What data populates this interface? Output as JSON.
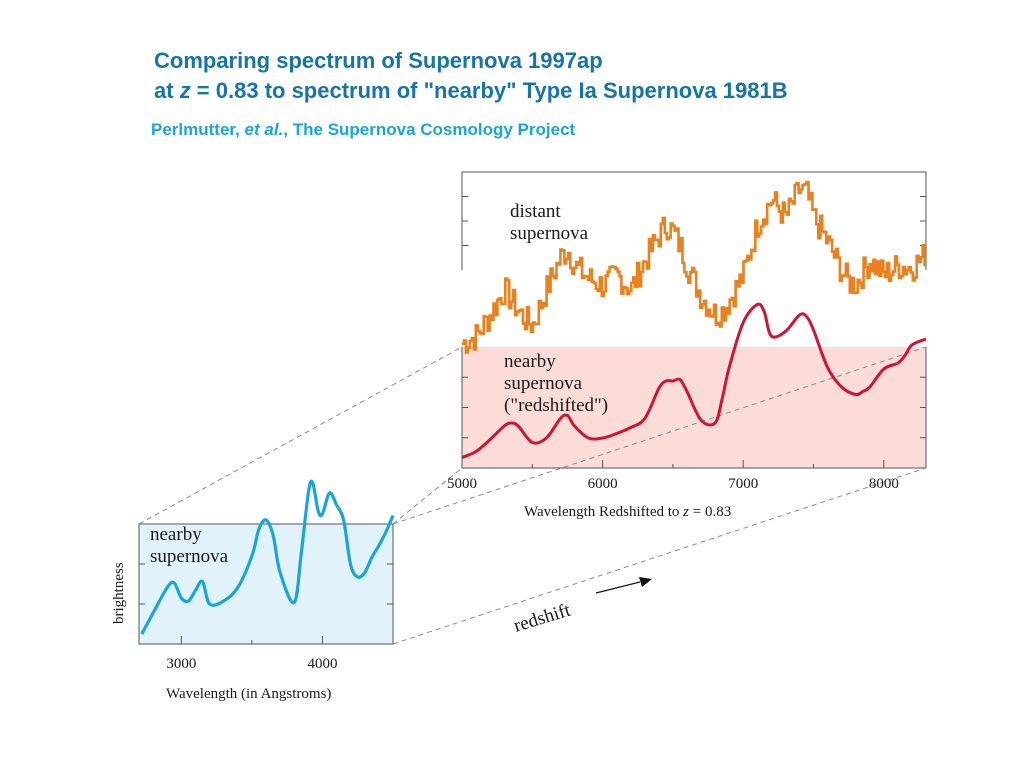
{
  "header": {
    "title_line1": "Comparing spectrum of Supernova 1997ap",
    "title_line2_prefix": "at ",
    "title_line2_var": "z",
    "title_line2_rest": " = 0.83 to spectrum of \"nearby\" Type Ia  Supernova 1981B",
    "credit_name": "Perlmutter, ",
    "credit_etal": "et al.",
    "credit_rest": ",  The Supernova Cosmology Project"
  },
  "colors": {
    "title": "#1574a8",
    "subtitle": "#1aa5d8",
    "distant_line": "#e9811e",
    "nearby_redshifted_line": "#cf1436",
    "nearby_line": "#1aa5d8",
    "nearby_fill": "#e2f2fa",
    "redshifted_fill": "#fbdcd6",
    "connector": "#8c8c8c"
  },
  "annotations": {
    "redshift_label": "redshift"
  },
  "chart_data": [
    {
      "type": "line",
      "name": "redshifted-panel",
      "xlabel_prefix": "Wavelength Redshifted to ",
      "xlabel_var": "z",
      "xlabel_suffix": " = 0.83",
      "xlim": [
        5000,
        8300
      ],
      "xticks": [
        5000,
        6000,
        7000,
        8000
      ],
      "xtick_labels": [
        "5000",
        "6000",
        "7000",
        "8000"
      ],
      "series": [
        {
          "name": "distant supernova",
          "label_lines": [
            "distant",
            "supernova"
          ],
          "x": [
            5000,
            5100,
            5200,
            5300,
            5400,
            5450,
            5500,
            5600,
            5700,
            5750,
            5800,
            5900,
            6000,
            6100,
            6200,
            6300,
            6400,
            6450,
            6500,
            6550,
            6600,
            6700,
            6800,
            6850,
            6900,
            7000,
            7100,
            7200,
            7300,
            7400,
            7450,
            7500,
            7600,
            7700,
            7750,
            7800,
            7900,
            8000,
            8100,
            8200,
            8300
          ],
          "y": [
            0.12,
            0.16,
            0.28,
            0.42,
            0.3,
            0.25,
            0.22,
            0.42,
            0.6,
            0.64,
            0.55,
            0.48,
            0.44,
            0.5,
            0.42,
            0.58,
            0.72,
            0.78,
            0.74,
            0.66,
            0.55,
            0.38,
            0.28,
            0.3,
            0.36,
            0.5,
            0.78,
            0.92,
            0.82,
            0.98,
            0.95,
            0.82,
            0.68,
            0.52,
            0.46,
            0.45,
            0.58,
            0.5,
            0.55,
            0.54,
            0.62
          ]
        },
        {
          "name": "nearby supernova (\"redshifted\")",
          "label_lines": [
            "nearby",
            "supernova",
            "(\"redshifted\")"
          ],
          "x": [
            5000,
            5100,
            5200,
            5300,
            5350,
            5400,
            5500,
            5600,
            5700,
            5750,
            5800,
            5900,
            6000,
            6100,
            6200,
            6300,
            6400,
            6450,
            6500,
            6550,
            6600,
            6700,
            6800,
            6850,
            6900,
            7000,
            7100,
            7150,
            7200,
            7300,
            7400,
            7450,
            7500,
            7600,
            7700,
            7800,
            7850,
            7900,
            8000,
            8100,
            8150,
            8200,
            8300
          ],
          "y": [
            0.03,
            0.07,
            0.15,
            0.24,
            0.26,
            0.24,
            0.13,
            0.16,
            0.29,
            0.31,
            0.24,
            0.16,
            0.16,
            0.19,
            0.23,
            0.29,
            0.49,
            0.54,
            0.54,
            0.55,
            0.47,
            0.28,
            0.26,
            0.42,
            0.63,
            0.93,
            1.05,
            1.0,
            0.84,
            0.87,
            0.98,
            0.97,
            0.88,
            0.63,
            0.5,
            0.45,
            0.47,
            0.5,
            0.62,
            0.66,
            0.71,
            0.78,
            0.82
          ]
        }
      ]
    },
    {
      "type": "line",
      "name": "nearby-panel",
      "xlabel": "Wavelength  (in Angstroms)",
      "ylabel": "brightness",
      "xlim": [
        2700,
        4500
      ],
      "xticks": [
        3000,
        4000
      ],
      "xtick_labels": [
        "3000",
        "4000"
      ],
      "series": [
        {
          "name": "nearby supernova",
          "label_lines": [
            "nearby",
            "supernova"
          ],
          "x": [
            2720,
            2800,
            2900,
            2950,
            3000,
            3050,
            3100,
            3150,
            3200,
            3300,
            3400,
            3500,
            3550,
            3600,
            3650,
            3700,
            3800,
            3850,
            3900,
            3930,
            3970,
            4000,
            4050,
            4100,
            4150,
            4200,
            4250,
            4300,
            4350,
            4400,
            4450,
            4500
          ],
          "y": [
            0.04,
            0.18,
            0.35,
            0.38,
            0.28,
            0.26,
            0.33,
            0.39,
            0.24,
            0.26,
            0.35,
            0.56,
            0.74,
            0.8,
            0.7,
            0.45,
            0.25,
            0.58,
            0.98,
            1.05,
            0.86,
            0.84,
            0.98,
            0.9,
            0.8,
            0.5,
            0.42,
            0.45,
            0.55,
            0.63,
            0.72,
            0.83
          ]
        }
      ]
    }
  ]
}
